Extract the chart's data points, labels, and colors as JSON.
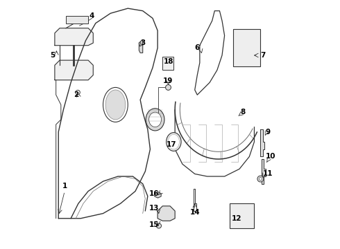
{
  "bg_color": "#ffffff",
  "line_color": "#333333",
  "label_color": "#000000"
}
